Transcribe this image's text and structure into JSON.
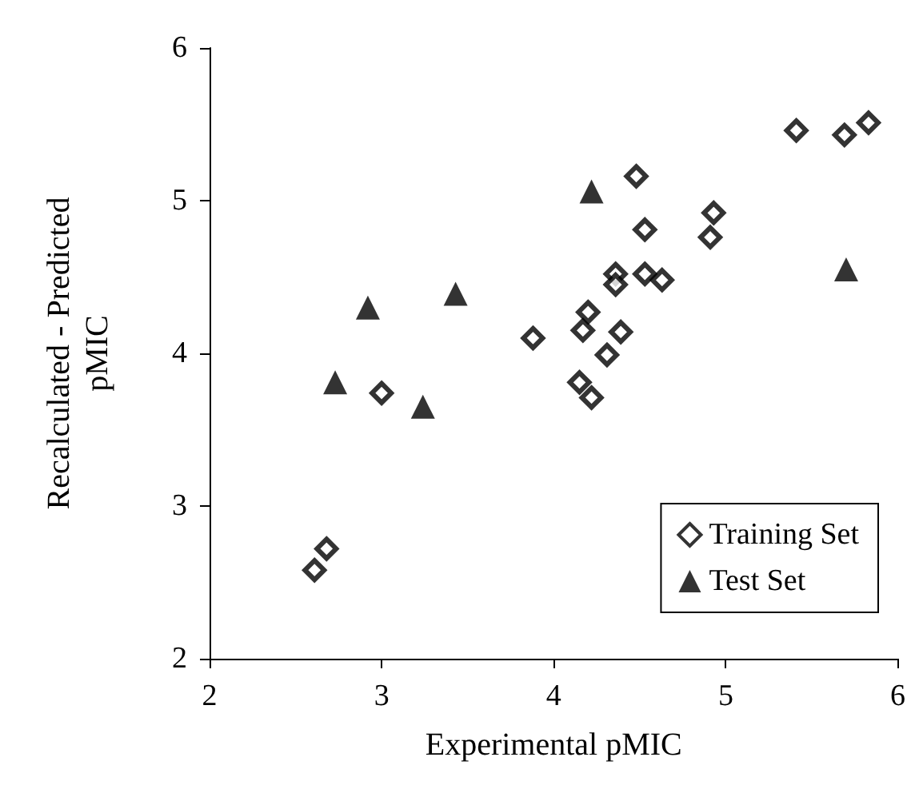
{
  "chart_data": {
    "type": "scatter",
    "xlabel": "Experimental pMIC",
    "ylabel": "Recalculated - Predicted\npMIC",
    "xlim": [
      2,
      6
    ],
    "ylim": [
      2,
      6
    ],
    "xticks": [
      2,
      3,
      4,
      5,
      6
    ],
    "yticks": [
      2,
      3,
      4,
      5,
      6
    ],
    "grid": false,
    "legend": "bottom right",
    "series": [
      {
        "name": "Training Set",
        "color": "#000000",
        "marker": "diamond",
        "x": [
          5.41,
          5.69,
          5.83,
          4.48,
          4.53,
          4.93,
          4.91,
          4.36,
          4.36,
          4.53,
          4.63,
          4.2,
          4.17,
          4.39,
          4.31,
          3.88,
          4.15,
          4.22,
          3.0,
          2.68,
          2.61
        ],
        "values": [
          5.46,
          5.43,
          5.51,
          5.16,
          4.81,
          4.92,
          4.76,
          4.52,
          4.45,
          4.52,
          4.48,
          4.27,
          4.15,
          4.14,
          3.99,
          4.1,
          3.81,
          3.71,
          3.74,
          2.72,
          2.58
        ]
      },
      {
        "name": "Test Set",
        "color": "#000000",
        "marker": "triangle",
        "x": [
          4.22,
          5.7,
          3.43,
          2.92,
          2.73,
          3.24
        ],
        "values": [
          5.06,
          4.55,
          4.39,
          4.3,
          3.81,
          3.65
        ]
      }
    ]
  }
}
